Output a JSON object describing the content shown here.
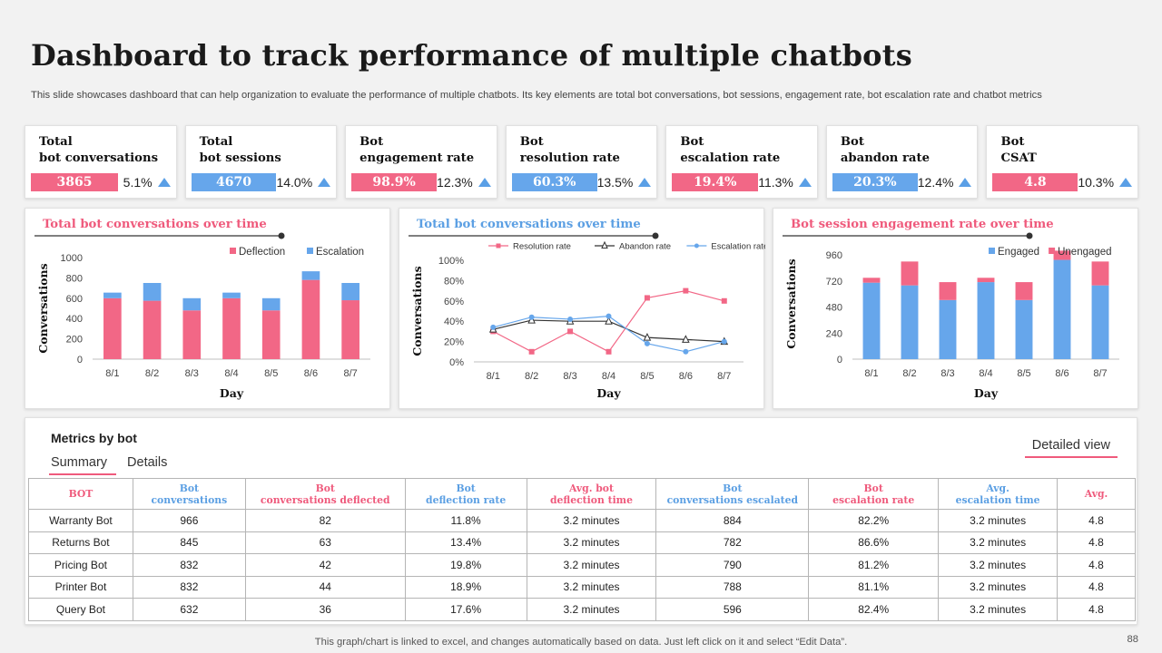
{
  "title": "Dashboard to track performance of multiple chatbots",
  "subtitle": "This slide showcases dashboard that can help organization to evaluate the performance of multiple chatbots. Its key elements are total bot conversations, bot sessions, engagement rate, bot escalation rate and chatbot metrics",
  "kpis": [
    {
      "line1": "Total",
      "line2": "bot conversations",
      "value": "3865",
      "pct": "5.1%",
      "color": "pink"
    },
    {
      "line1": "Total",
      "line2": "bot sessions",
      "value": "4670",
      "pct": "14.0%",
      "color": "blue"
    },
    {
      "line1": "Bot",
      "line2": "engagement rate",
      "value": "98.9%",
      "pct": "12.3%",
      "color": "pink"
    },
    {
      "line1": "Bot",
      "line2": "resolution rate",
      "value": "60.3%",
      "pct": "13.5%",
      "color": "blue"
    },
    {
      "line1": "Bot",
      "line2": "escalation rate",
      "value": "19.4%",
      "pct": "11.3%",
      "color": "pink"
    },
    {
      "line1": "Bot",
      "line2": "abandon rate",
      "value": "20.3%",
      "pct": "12.4%",
      "color": "blue"
    },
    {
      "line1": "Bot",
      "line2": "CSAT",
      "value": "4.8",
      "pct": "10.3%",
      "color": "pink"
    }
  ],
  "colors": {
    "pink": "#f26786",
    "blue": "#66a6eb",
    "dark": "#333333"
  },
  "chart_data": [
    {
      "type": "bar",
      "stacked": true,
      "title": "Total bot conversations over time",
      "categories": [
        "8/1",
        "8/2",
        "8/3",
        "8/4",
        "8/5",
        "8/6",
        "8/7"
      ],
      "series": [
        {
          "name": "Deflection",
          "values": [
            600,
            575,
            480,
            600,
            480,
            780,
            580
          ],
          "color": "#f26786"
        },
        {
          "name": "Escalation",
          "values": [
            55,
            175,
            120,
            55,
            120,
            85,
            170
          ],
          "color": "#66a6eb"
        }
      ],
      "xlabel": "Day",
      "ylabel": "Conversations",
      "ylim": [
        0,
        1000
      ],
      "yticks": [
        "0",
        "200",
        "400",
        "600",
        "800",
        "1000"
      ],
      "legend": "top-right"
    },
    {
      "type": "line",
      "title": "Total bot conversations over time",
      "categories": [
        "8/1",
        "8/2",
        "8/3",
        "8/4",
        "8/5",
        "8/6",
        "8/7"
      ],
      "series": [
        {
          "name": "Resolution rate",
          "values": [
            30,
            10,
            30,
            10,
            63,
            70,
            60
          ],
          "color": "#f26786",
          "marker": "square"
        },
        {
          "name": "Abandon rate",
          "values": [
            32,
            41,
            40,
            40,
            24,
            22,
            20
          ],
          "color": "#333333",
          "marker": "triangle"
        },
        {
          "name": "Escalation rate",
          "values": [
            34,
            44,
            42,
            45,
            18,
            10,
            20
          ],
          "color": "#66a6eb",
          "marker": "circle"
        }
      ],
      "xlabel": "Day",
      "ylabel": "Conversations",
      "ylim": [
        0,
        100
      ],
      "yticks": [
        "0%",
        "20%",
        "40%",
        "60%",
        "80%",
        "100%"
      ],
      "legend": "top"
    },
    {
      "type": "bar",
      "stacked": true,
      "title": "Bot session engagement rate over time",
      "categories": [
        "8/1",
        "8/2",
        "8/3",
        "8/4",
        "8/5",
        "8/6",
        "8/7"
      ],
      "series": [
        {
          "name": "Engaged",
          "values": [
            705,
            680,
            545,
            710,
            545,
            915,
            680
          ],
          "color": "#66a6eb"
        },
        {
          "name": "Unengaged",
          "values": [
            45,
            220,
            165,
            40,
            165,
            85,
            220
          ],
          "color": "#f26786"
        }
      ],
      "xlabel": "Day",
      "ylabel": "Conversations",
      "ylim": [
        0,
        1020
      ],
      "yticks": [
        "0",
        "240",
        "480",
        "720",
        "960"
      ],
      "legend": "top-right"
    }
  ],
  "metrics": {
    "title": "Metrics by bot",
    "tabs": [
      "Summary",
      "Details"
    ],
    "detailed_view": "Detailed view",
    "columns": [
      {
        "line1": "BOT",
        "line2": "",
        "color": "pink"
      },
      {
        "line1": "Bot",
        "line2": "conversations",
        "color": "blue"
      },
      {
        "line1": "Bot",
        "line2": "conversations deflected",
        "color": "pink"
      },
      {
        "line1": "Bot",
        "line2": "deflection rate",
        "color": "blue"
      },
      {
        "line1": "Avg. bot",
        "line2": "deflection time",
        "color": "pink"
      },
      {
        "line1": "Bot",
        "line2": "conversations escalated",
        "color": "blue"
      },
      {
        "line1": "Bot",
        "line2": "escalation rate",
        "color": "pink"
      },
      {
        "line1": "Avg.",
        "line2": "escalation time",
        "color": "blue"
      },
      {
        "line1": "Avg.",
        "line2": "",
        "color": "pink"
      }
    ],
    "rows": [
      [
        "Warranty Bot",
        "966",
        "82",
        "11.8%",
        "3.2 minutes",
        "884",
        "82.2%",
        "3.2 minutes",
        "4.8"
      ],
      [
        "Returns Bot",
        "845",
        "63",
        "13.4%",
        "3.2 minutes",
        "782",
        "86.6%",
        "3.2 minutes",
        "4.8"
      ],
      [
        "Pricing Bot",
        "832",
        "42",
        "19.8%",
        "3.2 minutes",
        "790",
        "81.2%",
        "3.2 minutes",
        "4.8"
      ],
      [
        "Printer Bot",
        "832",
        "44",
        "18.9%",
        "3.2 minutes",
        "788",
        "81.1%",
        "3.2 minutes",
        "4.8"
      ],
      [
        "Query Bot",
        "632",
        "36",
        "17.6%",
        "3.2 minutes",
        "596",
        "82.4%",
        "3.2 minutes",
        "4.8"
      ]
    ]
  },
  "footnote": "This graph/chart is linked to excel,  and changes automatically based on data. Just left click on it and select “Edit Data”.",
  "page_number": "88"
}
